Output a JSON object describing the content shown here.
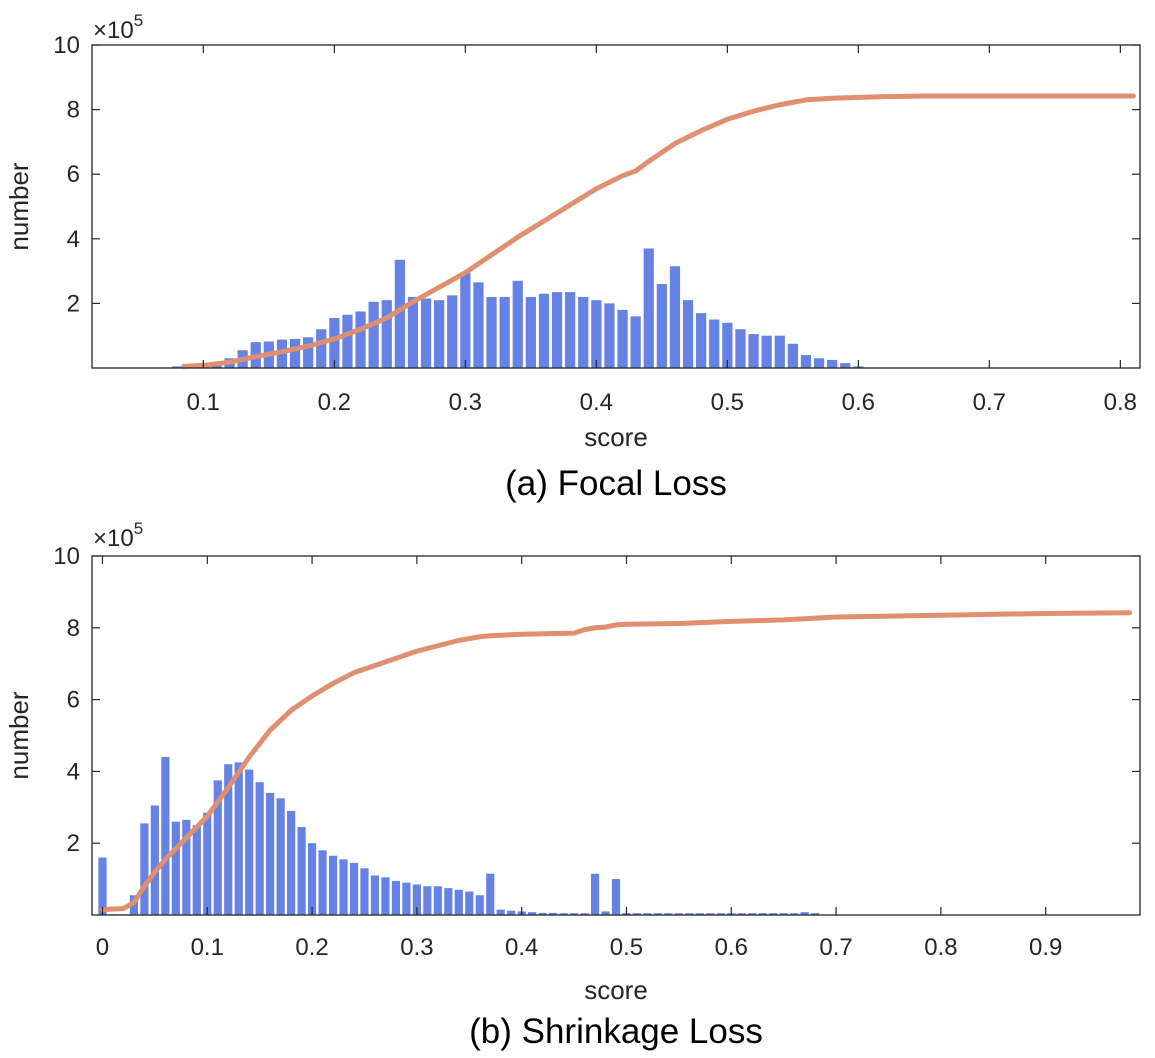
{
  "colors": {
    "bar": "#6582e4",
    "line": "#e08f70",
    "axis": "#262626"
  },
  "chart_data": [
    {
      "type": "bar",
      "caption": "(a) Focal Loss",
      "xlabel": "score",
      "ylabel": "number",
      "exponent_base": "×10",
      "exponent_power": "5",
      "xlim": [
        0.015,
        0.815
      ],
      "ylim": [
        0,
        10
      ],
      "xticks": [
        0.1,
        0.2,
        0.3,
        0.4,
        0.5,
        0.6,
        0.7,
        0.8
      ],
      "xtick_labels": [
        "0.1",
        "0.2",
        "0.3",
        "0.4",
        "0.5",
        "0.6",
        "0.7",
        "0.8"
      ],
      "yticks": [
        2,
        4,
        6,
        8,
        10
      ],
      "ytick_labels": [
        "2",
        "4",
        "6",
        "8",
        "10"
      ],
      "bin_width": 0.01,
      "series": [
        {
          "name": "histogram",
          "kind": "bar",
          "x": [
            0.07,
            0.08,
            0.09,
            0.1,
            0.11,
            0.12,
            0.13,
            0.14,
            0.15,
            0.16,
            0.17,
            0.18,
            0.19,
            0.2,
            0.21,
            0.22,
            0.23,
            0.24,
            0.25,
            0.26,
            0.27,
            0.28,
            0.29,
            0.3,
            0.31,
            0.32,
            0.33,
            0.34,
            0.35,
            0.36,
            0.37,
            0.38,
            0.39,
            0.4,
            0.41,
            0.42,
            0.43,
            0.44,
            0.45,
            0.46,
            0.47,
            0.48,
            0.49,
            0.5,
            0.51,
            0.52,
            0.53,
            0.54,
            0.55,
            0.56,
            0.57,
            0.58,
            0.59,
            0.6
          ],
          "values": [
            0.02,
            0.05,
            0.05,
            0.12,
            0.18,
            0.3,
            0.55,
            0.8,
            0.82,
            0.88,
            0.9,
            0.95,
            1.2,
            1.55,
            1.65,
            1.75,
            2.05,
            2.1,
            3.35,
            2.2,
            2.15,
            2.1,
            2.25,
            2.95,
            2.65,
            2.2,
            2.2,
            2.7,
            2.2,
            2.3,
            2.35,
            2.35,
            2.2,
            2.1,
            2.0,
            1.8,
            1.6,
            3.7,
            2.6,
            3.15,
            2.1,
            1.7,
            1.5,
            1.4,
            1.2,
            1.05,
            1.0,
            1.0,
            0.75,
            0.4,
            0.3,
            0.25,
            0.15,
            0.05
          ]
        },
        {
          "name": "cumulative",
          "kind": "line",
          "x": [
            0.085,
            0.1,
            0.12,
            0.14,
            0.16,
            0.18,
            0.2,
            0.22,
            0.24,
            0.26,
            0.28,
            0.3,
            0.32,
            0.34,
            0.36,
            0.38,
            0.4,
            0.42,
            0.43,
            0.44,
            0.46,
            0.48,
            0.5,
            0.52,
            0.54,
            0.56,
            0.58,
            0.6,
            0.62,
            0.65,
            0.7,
            0.75,
            0.81
          ],
          "values": [
            0.05,
            0.08,
            0.18,
            0.35,
            0.5,
            0.68,
            0.9,
            1.2,
            1.55,
            2.05,
            2.5,
            2.95,
            3.5,
            4.05,
            4.55,
            5.05,
            5.55,
            5.95,
            6.1,
            6.4,
            6.95,
            7.35,
            7.7,
            7.95,
            8.15,
            8.3,
            8.35,
            8.38,
            8.4,
            8.42,
            8.42,
            8.42,
            8.42
          ]
        }
      ]
    },
    {
      "type": "bar",
      "caption": "(b) Shrinkage Loss",
      "xlabel": "score",
      "ylabel": "number",
      "exponent_base": "×10",
      "exponent_power": "5",
      "xlim": [
        -0.01,
        0.99
      ],
      "ylim": [
        0,
        10
      ],
      "xticks": [
        0,
        0.1,
        0.2,
        0.3,
        0.4,
        0.5,
        0.6,
        0.7,
        0.8,
        0.9
      ],
      "xtick_labels": [
        "0",
        "0.1",
        "0.2",
        "0.3",
        "0.4",
        "0.5",
        "0.6",
        "0.7",
        "0.8",
        "0.9"
      ],
      "yticks": [
        2,
        4,
        6,
        8,
        10
      ],
      "ytick_labels": [
        "2",
        "4",
        "6",
        "8",
        "10"
      ],
      "bin_width": 0.01,
      "series": [
        {
          "name": "histogram",
          "kind": "bar",
          "x": [
            0.0,
            0.01,
            0.02,
            0.03,
            0.04,
            0.05,
            0.06,
            0.07,
            0.08,
            0.09,
            0.1,
            0.11,
            0.12,
            0.13,
            0.14,
            0.15,
            0.16,
            0.17,
            0.18,
            0.19,
            0.2,
            0.21,
            0.22,
            0.23,
            0.24,
            0.25,
            0.26,
            0.27,
            0.28,
            0.29,
            0.3,
            0.31,
            0.32,
            0.33,
            0.34,
            0.35,
            0.36,
            0.37,
            0.38,
            0.39,
            0.4,
            0.41,
            0.42,
            0.43,
            0.44,
            0.45,
            0.46,
            0.47,
            0.48,
            0.49,
            0.5,
            0.51,
            0.52,
            0.53,
            0.54,
            0.55,
            0.56,
            0.57,
            0.58,
            0.59,
            0.6,
            0.61,
            0.62,
            0.63,
            0.64,
            0.65,
            0.66,
            0.67,
            0.68
          ],
          "values": [
            1.6,
            0.02,
            0.02,
            0.55,
            2.55,
            3.05,
            4.4,
            2.6,
            2.65,
            2.5,
            2.85,
            3.75,
            4.2,
            4.25,
            4.05,
            3.7,
            3.4,
            3.25,
            2.9,
            2.45,
            2.0,
            1.8,
            1.65,
            1.55,
            1.45,
            1.3,
            1.1,
            1.05,
            0.95,
            0.9,
            0.85,
            0.8,
            0.8,
            0.75,
            0.7,
            0.65,
            0.55,
            1.15,
            0.15,
            0.12,
            0.1,
            0.08,
            0.06,
            0.06,
            0.05,
            0.05,
            0.05,
            1.15,
            0.1,
            1.0,
            0.05,
            0.05,
            0.05,
            0.05,
            0.05,
            0.05,
            0.05,
            0.05,
            0.05,
            0.05,
            0.05,
            0.05,
            0.05,
            0.05,
            0.05,
            0.05,
            0.05,
            0.08,
            0.05
          ]
        },
        {
          "name": "cumulative",
          "kind": "line",
          "x": [
            0.0,
            0.02,
            0.03,
            0.04,
            0.05,
            0.06,
            0.08,
            0.1,
            0.12,
            0.14,
            0.16,
            0.18,
            0.2,
            0.22,
            0.24,
            0.26,
            0.28,
            0.3,
            0.32,
            0.34,
            0.36,
            0.37,
            0.4,
            0.45,
            0.46,
            0.47,
            0.48,
            0.49,
            0.5,
            0.55,
            0.6,
            0.65,
            0.7,
            0.8,
            0.9,
            0.98
          ],
          "values": [
            0.15,
            0.18,
            0.35,
            0.8,
            1.2,
            1.55,
            2.15,
            2.75,
            3.55,
            4.4,
            5.15,
            5.7,
            6.1,
            6.45,
            6.75,
            6.95,
            7.15,
            7.35,
            7.5,
            7.65,
            7.75,
            7.78,
            7.82,
            7.85,
            7.95,
            8.0,
            8.02,
            8.08,
            8.1,
            8.12,
            8.18,
            8.22,
            8.3,
            8.35,
            8.4,
            8.42
          ]
        }
      ]
    }
  ]
}
